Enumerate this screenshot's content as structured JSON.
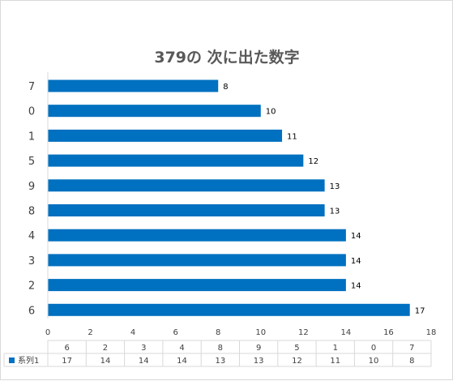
{
  "chart_data": {
    "type": "bar",
    "orientation": "horizontal",
    "title": "379の 次に出た数字",
    "categories": [
      "7",
      "0",
      "1",
      "5",
      "9",
      "8",
      "4",
      "3",
      "2",
      "6"
    ],
    "series": [
      {
        "name": "系列1",
        "values": [
          8,
          10,
          11,
          12,
          13,
          13,
          14,
          14,
          14,
          17
        ]
      }
    ],
    "xlim": [
      0,
      18
    ],
    "xticks": [
      0,
      2,
      4,
      6,
      8,
      10,
      12,
      14,
      16,
      18
    ],
    "data_labels": true,
    "grid": false,
    "data_table": {
      "categories": [
        "6",
        "2",
        "3",
        "4",
        "8",
        "9",
        "5",
        "1",
        "0",
        "7"
      ],
      "values": [
        17,
        14,
        14,
        14,
        13,
        13,
        12,
        11,
        10,
        8
      ]
    }
  },
  "colors": {
    "bar": "#0070C0",
    "axis": "#d9d9d9",
    "text": "#404040",
    "title": "#595959"
  }
}
